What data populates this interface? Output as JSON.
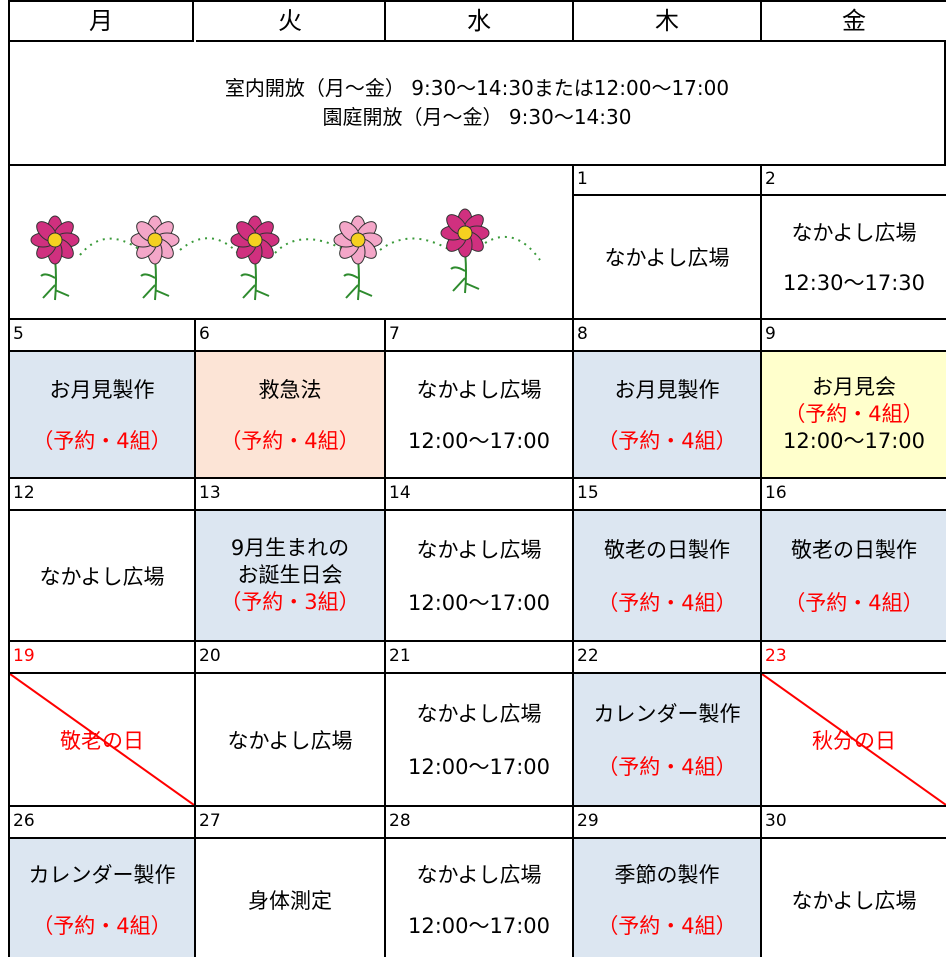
{
  "header": {
    "days": [
      "月",
      "火",
      "水",
      "木",
      "金"
    ]
  },
  "notice": {
    "lines": [
      "室内開放（月～金） 9:30～14:30または12:00～17:00",
      "園庭開放（月～金） 9:30～14:30"
    ]
  },
  "weeks": [
    {
      "days": [
        null,
        null,
        null,
        {
          "date": "1",
          "lines": [
            {
              "text": "なかよし広場"
            }
          ]
        },
        {
          "date": "2",
          "lines": [
            {
              "text": "なかよし広場"
            },
            {
              "text": "12:30～17:30"
            }
          ]
        }
      ]
    },
    {
      "days": [
        {
          "date": "5",
          "fill": "#dce6f1",
          "lines": [
            {
              "text": "お月見製作"
            },
            {
              "text": "（予約・4組）",
              "color": "#ff0000"
            }
          ]
        },
        {
          "date": "6",
          "fill": "#fce4d6",
          "lines": [
            {
              "text": "救急法"
            },
            {
              "text": "（予約・4組）",
              "color": "#ff0000"
            }
          ]
        },
        {
          "date": "7",
          "lines": [
            {
              "text": "なかよし広場"
            },
            {
              "text": "12:00～17:00"
            }
          ]
        },
        {
          "date": "8",
          "fill": "#dce6f1",
          "lines": [
            {
              "text": "お月見製作"
            },
            {
              "text": "（予約・4組）",
              "color": "#ff0000"
            }
          ]
        },
        {
          "date": "9",
          "fill": "#ffffcc",
          "lines": [
            {
              "text": "お月見会"
            },
            {
              "text": "（予約・4組）",
              "color": "#ff0000"
            },
            {
              "text": "12:00～17:00"
            }
          ]
        }
      ]
    },
    {
      "days": [
        {
          "date": "12",
          "lines": [
            {
              "text": "なかよし広場"
            }
          ]
        },
        {
          "date": "13",
          "fill": "#dce6f1",
          "lines": [
            {
              "text": "9月生まれの"
            },
            {
              "text": "お誕生日会"
            },
            {
              "text": "（予約・3組）",
              "color": "#ff0000"
            }
          ]
        },
        {
          "date": "14",
          "lines": [
            {
              "text": "なかよし広場"
            },
            {
              "text": "12:00～17:00"
            }
          ]
        },
        {
          "date": "15",
          "fill": "#dce6f1",
          "lines": [
            {
              "text": "敬老の日製作"
            },
            {
              "text": "（予約・4組）",
              "color": "#ff0000"
            }
          ]
        },
        {
          "date": "16",
          "fill": "#dce6f1",
          "lines": [
            {
              "text": "敬老の日製作"
            },
            {
              "text": "（予約・4組）",
              "color": "#ff0000"
            }
          ]
        }
      ]
    },
    {
      "days": [
        {
          "date": "19",
          "date_color": "#ff0000",
          "crossed_out": true,
          "lines": [
            {
              "text": "敬老の日",
              "color": "#ff0000"
            }
          ]
        },
        {
          "date": "20",
          "lines": [
            {
              "text": "なかよし広場"
            }
          ]
        },
        {
          "date": "21",
          "lines": [
            {
              "text": "なかよし広場"
            },
            {
              "text": "12:00～17:00"
            }
          ]
        },
        {
          "date": "22",
          "fill": "#dce6f1",
          "lines": [
            {
              "text": "カレンダー製作"
            },
            {
              "text": "（予約・4組）",
              "color": "#ff0000"
            }
          ]
        },
        {
          "date": "23",
          "date_color": "#ff0000",
          "crossed_out": true,
          "lines": [
            {
              "text": "秋分の日",
              "color": "#ff0000"
            }
          ]
        }
      ]
    },
    {
      "days": [
        {
          "date": "26",
          "fill": "#dce6f1",
          "lines": [
            {
              "text": "カレンダー製作"
            },
            {
              "text": "（予約・4組）",
              "color": "#ff0000"
            }
          ]
        },
        {
          "date": "27",
          "lines": [
            {
              "text": "身体測定"
            }
          ]
        },
        {
          "date": "28",
          "lines": [
            {
              "text": "なかよし広場"
            },
            {
              "text": "12:00～17:00"
            }
          ]
        },
        {
          "date": "29",
          "fill": "#dce6f1",
          "lines": [
            {
              "text": "季節の製作"
            },
            {
              "text": "（予約・4組）",
              "color": "#ff0000"
            }
          ]
        },
        {
          "date": "30",
          "lines": [
            {
              "text": "なかよし広場"
            }
          ]
        }
      ]
    }
  ]
}
